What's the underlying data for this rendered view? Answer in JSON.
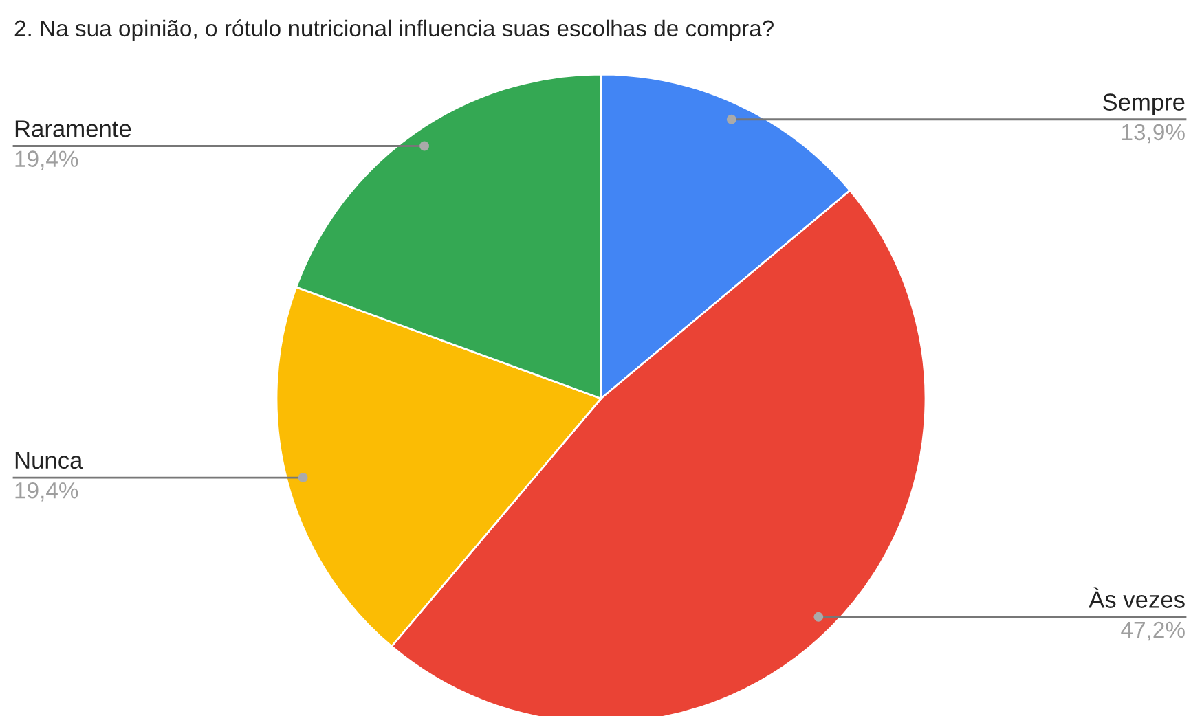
{
  "chart_data": {
    "type": "pie",
    "title": "2. Na sua opinião, o rótulo nutricional influencia suas escolhas de compra?",
    "categories": [
      "Sempre",
      "Às vezes",
      "Nunca",
      "Raramente"
    ],
    "values": [
      13.9,
      47.2,
      19.4,
      19.4
    ],
    "colors": [
      "#4285f4",
      "#ea4335",
      "#fbbc04",
      "#34a853"
    ],
    "value_labels": [
      "13,9%",
      "47,2%",
      "19,4%",
      "19,4%"
    ]
  }
}
